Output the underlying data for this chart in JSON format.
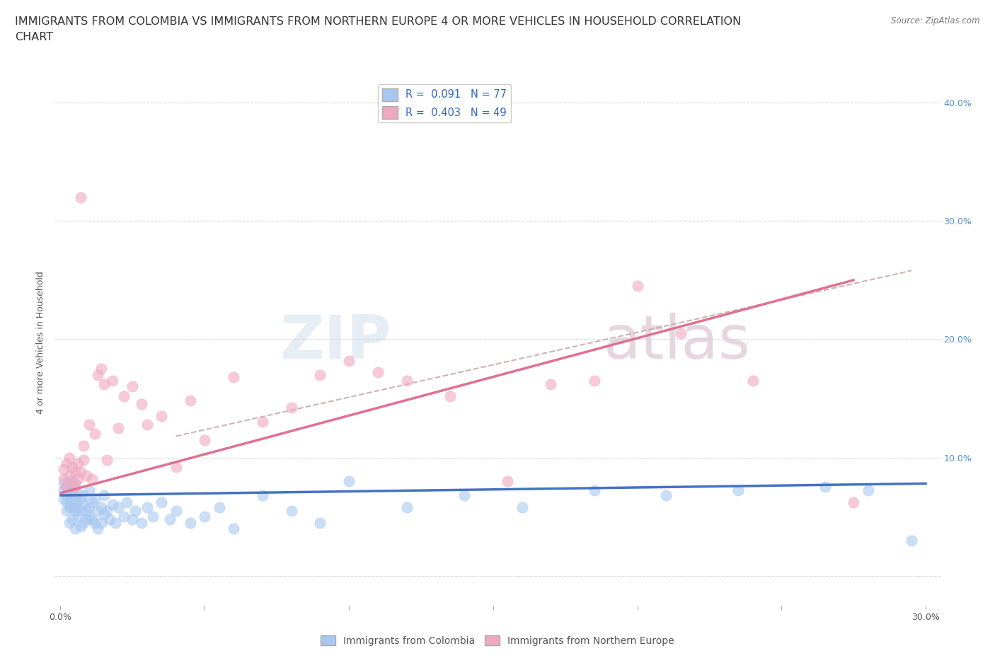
{
  "title": "IMMIGRANTS FROM COLOMBIA VS IMMIGRANTS FROM NORTHERN EUROPE 4 OR MORE VEHICLES IN HOUSEHOLD CORRELATION\nCHART",
  "source": "Source: ZipAtlas.com",
  "ylabel": "4 or more Vehicles in Household",
  "xlim": [
    -0.002,
    0.305
  ],
  "ylim": [
    -0.025,
    0.42
  ],
  "xticks": [
    0.0,
    0.05,
    0.1,
    0.15,
    0.2,
    0.25,
    0.3
  ],
  "xtick_labels": [
    "0.0%",
    "",
    "",
    "",
    "",
    "",
    "30.0%"
  ],
  "yticks_right": [
    0.0,
    0.1,
    0.2,
    0.3,
    0.4
  ],
  "ytick_right_labels": [
    "",
    "10.0%",
    "20.0%",
    "30.0%",
    "40.0%"
  ],
  "colombia_color": "#a8c8f0",
  "northern_color": "#f0a8c0",
  "colombia_line_color": "#4472c4",
  "northern_line_color": "#e07090",
  "colombia_R": 0.091,
  "colombia_N": 77,
  "northern_R": 0.403,
  "northern_N": 49,
  "watermark_zip": "ZIP",
  "watermark_atlas": "atlas",
  "colombia_scatter_x": [
    0.001,
    0.001,
    0.001,
    0.002,
    0.002,
    0.002,
    0.002,
    0.003,
    0.003,
    0.003,
    0.003,
    0.003,
    0.004,
    0.004,
    0.004,
    0.004,
    0.005,
    0.005,
    0.005,
    0.005,
    0.005,
    0.006,
    0.006,
    0.006,
    0.007,
    0.007,
    0.007,
    0.008,
    0.008,
    0.008,
    0.009,
    0.009,
    0.01,
    0.01,
    0.01,
    0.011,
    0.011,
    0.012,
    0.012,
    0.013,
    0.013,
    0.014,
    0.014,
    0.015,
    0.015,
    0.016,
    0.017,
    0.018,
    0.019,
    0.02,
    0.022,
    0.023,
    0.025,
    0.026,
    0.028,
    0.03,
    0.032,
    0.035,
    0.038,
    0.04,
    0.045,
    0.05,
    0.055,
    0.06,
    0.07,
    0.08,
    0.09,
    0.1,
    0.12,
    0.14,
    0.16,
    0.185,
    0.21,
    0.235,
    0.265,
    0.28,
    0.295
  ],
  "colombia_scatter_y": [
    0.072,
    0.065,
    0.078,
    0.068,
    0.062,
    0.055,
    0.075,
    0.06,
    0.058,
    0.07,
    0.045,
    0.08,
    0.063,
    0.058,
    0.072,
    0.048,
    0.078,
    0.055,
    0.062,
    0.04,
    0.068,
    0.07,
    0.05,
    0.058,
    0.065,
    0.042,
    0.055,
    0.06,
    0.045,
    0.068,
    0.055,
    0.048,
    0.05,
    0.058,
    0.072,
    0.048,
    0.062,
    0.045,
    0.065,
    0.055,
    0.04,
    0.058,
    0.045,
    0.068,
    0.052,
    0.055,
    0.048,
    0.06,
    0.045,
    0.058,
    0.05,
    0.062,
    0.048,
    0.055,
    0.045,
    0.058,
    0.05,
    0.062,
    0.048,
    0.055,
    0.045,
    0.05,
    0.058,
    0.04,
    0.068,
    0.055,
    0.045,
    0.08,
    0.058,
    0.068,
    0.058,
    0.072,
    0.068,
    0.072,
    0.075,
    0.072,
    0.03
  ],
  "northern_scatter_x": [
    0.001,
    0.001,
    0.002,
    0.002,
    0.003,
    0.003,
    0.004,
    0.004,
    0.005,
    0.005,
    0.006,
    0.006,
    0.007,
    0.007,
    0.008,
    0.008,
    0.009,
    0.01,
    0.011,
    0.012,
    0.013,
    0.014,
    0.015,
    0.016,
    0.018,
    0.02,
    0.022,
    0.025,
    0.028,
    0.03,
    0.035,
    0.04,
    0.045,
    0.05,
    0.06,
    0.07,
    0.08,
    0.09,
    0.1,
    0.11,
    0.12,
    0.135,
    0.155,
    0.17,
    0.185,
    0.2,
    0.215,
    0.24,
    0.275
  ],
  "northern_scatter_y": [
    0.082,
    0.09,
    0.075,
    0.095,
    0.085,
    0.1,
    0.078,
    0.092,
    0.088,
    0.075,
    0.082,
    0.095,
    0.32,
    0.088,
    0.098,
    0.11,
    0.085,
    0.128,
    0.082,
    0.12,
    0.17,
    0.175,
    0.162,
    0.098,
    0.165,
    0.125,
    0.152,
    0.16,
    0.145,
    0.128,
    0.135,
    0.092,
    0.148,
    0.115,
    0.168,
    0.13,
    0.142,
    0.17,
    0.182,
    0.172,
    0.165,
    0.152,
    0.08,
    0.162,
    0.165,
    0.245,
    0.205,
    0.165,
    0.062
  ],
  "colombia_line_x": [
    0.0,
    0.3
  ],
  "colombia_line_y": [
    0.068,
    0.078
  ],
  "northern_line_x": [
    0.0,
    0.275
  ],
  "northern_line_y": [
    0.07,
    0.25
  ],
  "dash_line_x": [
    0.04,
    0.295
  ],
  "dash_line_y": [
    0.118,
    0.258
  ],
  "bg_color": "#ffffff",
  "grid_color": "#d0d0d0",
  "title_fontsize": 11.5,
  "axis_label_fontsize": 9,
  "tick_fontsize": 9
}
